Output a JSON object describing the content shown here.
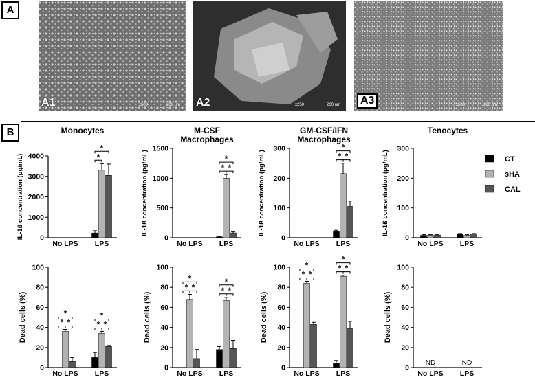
{
  "panels": {
    "a": "A",
    "b": "B"
  },
  "micrographs": [
    {
      "label": "A1",
      "magnification": "x500",
      "scale": "200 um",
      "tone": "#6e6e6e"
    },
    {
      "label": "A2",
      "magnification": "x250",
      "scale": "200 um",
      "tone": "#4e4e4e"
    },
    {
      "label": "A3",
      "magnification": "x500",
      "scale": "200 um",
      "tone": "#7a7a7a"
    }
  ],
  "legend": [
    {
      "name": "CT",
      "color": "#000000"
    },
    {
      "name": "sHA",
      "color": "#b3b3b3"
    },
    {
      "name": "CAL",
      "color": "#555555"
    }
  ],
  "sig_symbol": "*",
  "chart_data": [
    {
      "type": "bar",
      "title": "Monocytes",
      "ylabel": "IL-1ß concentration (pg/mL)",
      "ylim": [
        0,
        4000
      ],
      "yticks": [
        0,
        1000,
        2000,
        3000,
        4000
      ],
      "categories": [
        "No LPS",
        "LPS"
      ],
      "series": [
        {
          "name": "CT",
          "values": [
            0,
            230
          ],
          "errors": [
            0,
            110
          ]
        },
        {
          "name": "sHA",
          "values": [
            0,
            3300
          ],
          "errors": [
            0,
            320
          ]
        },
        {
          "name": "CAL",
          "values": [
            0,
            3050
          ],
          "errors": [
            0,
            550
          ]
        }
      ]
    },
    {
      "type": "bar",
      "title": "M-CSF Macrophages",
      "ylabel": "IL-1ß concentration (pg/mL)",
      "ylim": [
        0,
        1500
      ],
      "yticks": [
        0,
        500,
        1000,
        1500
      ],
      "categories": [
        "No LPS",
        "LPS"
      ],
      "series": [
        {
          "name": "CT",
          "values": [
            0,
            15
          ],
          "errors": [
            0,
            10
          ]
        },
        {
          "name": "sHA",
          "values": [
            0,
            1000
          ],
          "errors": [
            0,
            60
          ]
        },
        {
          "name": "CAL",
          "values": [
            0,
            80
          ],
          "errors": [
            0,
            20
          ]
        }
      ]
    },
    {
      "type": "bar",
      "title": "GM-CSF/IFN Macrophages",
      "ylabel": "IL-1ß concentration (pg/mL)",
      "ylim": [
        0,
        300
      ],
      "yticks": [
        0,
        100,
        200,
        300
      ],
      "categories": [
        "No LPS",
        "LPS"
      ],
      "series": [
        {
          "name": "CT",
          "values": [
            0,
            20
          ],
          "errors": [
            0,
            5
          ]
        },
        {
          "name": "sHA",
          "values": [
            0,
            215
          ],
          "errors": [
            0,
            35
          ]
        },
        {
          "name": "CAL",
          "values": [
            0,
            105
          ],
          "errors": [
            0,
            18
          ]
        }
      ]
    },
    {
      "type": "bar",
      "title": "Tenocytes",
      "ylabel": "IL-1ß concentration (pg/mL)",
      "ylim": [
        0,
        300
      ],
      "yticks": [
        0,
        100,
        200,
        300
      ],
      "categories": [
        "No LPS",
        "LPS"
      ],
      "series": [
        {
          "name": "CT",
          "values": [
            8,
            12
          ],
          "errors": [
            2,
            2
          ]
        },
        {
          "name": "sHA",
          "values": [
            8,
            8
          ],
          "errors": [
            2,
            2
          ]
        },
        {
          "name": "CAL",
          "values": [
            9,
            12
          ],
          "errors": [
            2,
            2
          ]
        }
      ]
    },
    {
      "type": "bar",
      "title": "",
      "ylabel": "Dead cells (%)",
      "ylim": [
        0,
        100
      ],
      "yticks": [
        0,
        20,
        40,
        60,
        80,
        100
      ],
      "categories": [
        "No LPS",
        "LPS"
      ],
      "series": [
        {
          "name": "CT",
          "values": [
            0,
            10
          ],
          "errors": [
            0,
            5
          ]
        },
        {
          "name": "sHA",
          "values": [
            36,
            34
          ],
          "errors": [
            2,
            2
          ]
        },
        {
          "name": "CAL",
          "values": [
            6,
            21
          ],
          "errors": [
            4,
            1
          ]
        }
      ]
    },
    {
      "type": "bar",
      "title": "",
      "ylabel": "Dead cells (%)",
      "ylim": [
        0,
        100
      ],
      "yticks": [
        0,
        20,
        40,
        60,
        80,
        100
      ],
      "categories": [
        "No LPS",
        "LPS"
      ],
      "series": [
        {
          "name": "CT",
          "values": [
            0,
            18
          ],
          "errors": [
            0,
            3
          ]
        },
        {
          "name": "sHA",
          "values": [
            68,
            67
          ],
          "errors": [
            5,
            3
          ]
        },
        {
          "name": "CAL",
          "values": [
            9,
            19
          ],
          "errors": [
            9,
            8
          ]
        }
      ]
    },
    {
      "type": "bar",
      "title": "",
      "ylabel": "Dead cells (%)",
      "ylim": [
        0,
        100
      ],
      "yticks": [
        0,
        20,
        40,
        60,
        80,
        100
      ],
      "categories": [
        "No LPS",
        "LPS"
      ],
      "series": [
        {
          "name": "CT",
          "values": [
            0,
            4
          ],
          "errors": [
            0,
            3
          ]
        },
        {
          "name": "sHA",
          "values": [
            84,
            91
          ],
          "errors": [
            2,
            1
          ]
        },
        {
          "name": "CAL",
          "values": [
            43,
            39
          ],
          "errors": [
            2,
            7
          ]
        }
      ]
    },
    {
      "type": "bar",
      "title": "",
      "ylabel": "Dead cells (%)",
      "ylim": [
        0,
        100
      ],
      "yticks": [
        0,
        20,
        40,
        60,
        80,
        100
      ],
      "categories": [
        "No LPS",
        "LPS"
      ],
      "annotations": [
        "ND",
        "ND"
      ],
      "series": []
    }
  ]
}
